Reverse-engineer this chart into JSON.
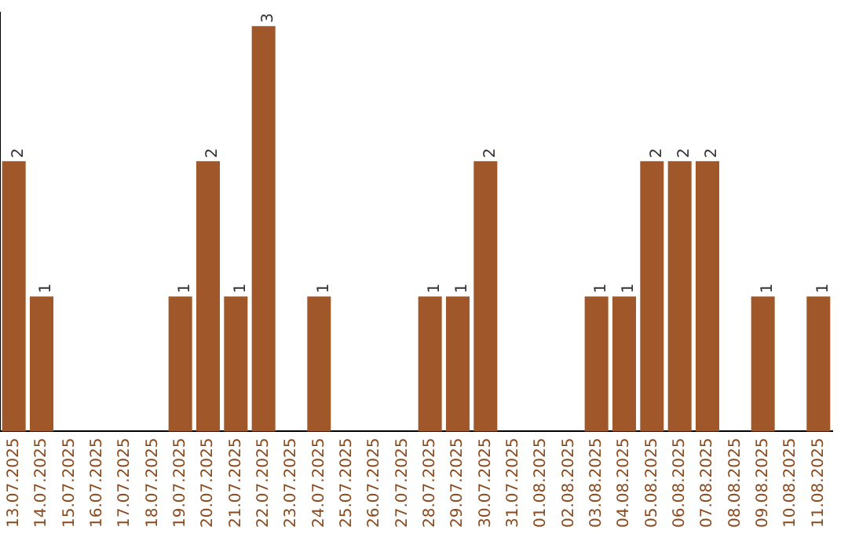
{
  "chart_data": {
    "type": "bar",
    "categories": [
      "13.07.2025",
      "14.07.2025",
      "15.07.2025",
      "16.07.2025",
      "17.07.2025",
      "18.07.2025",
      "19.07.2025",
      "20.07.2025",
      "21.07.2025",
      "22.07.2025",
      "23.07.2025",
      "24.07.2025",
      "25.07.2025",
      "26.07.2025",
      "27.07.2025",
      "28.07.2025",
      "29.07.2025",
      "30.07.2025",
      "31.07.2025",
      "01.08.2025",
      "02.08.2025",
      "03.08.2025",
      "04.08.2025",
      "05.08.2025",
      "06.08.2025",
      "07.08.2025",
      "08.08.2025",
      "09.08.2025",
      "10.08.2025",
      "11.08.2025"
    ],
    "values": [
      2,
      1,
      0,
      0,
      0,
      0,
      1,
      2,
      1,
      3,
      0,
      1,
      0,
      0,
      0,
      1,
      1,
      2,
      0,
      0,
      0,
      1,
      1,
      2,
      2,
      2,
      0,
      1,
      0,
      1
    ],
    "value_labels": [
      "2",
      "1",
      null,
      null,
      null,
      null,
      "1",
      "2",
      "1",
      "3",
      null,
      "1",
      null,
      null,
      null,
      "1",
      "1",
      "2",
      null,
      null,
      null,
      "1",
      "1",
      "2",
      "2",
      "2",
      null,
      "1",
      null,
      "1"
    ],
    "color": "#a0572a",
    "ylim": [
      0,
      3.1
    ],
    "tick_labels": "x",
    "grid": false,
    "legend": false
  }
}
